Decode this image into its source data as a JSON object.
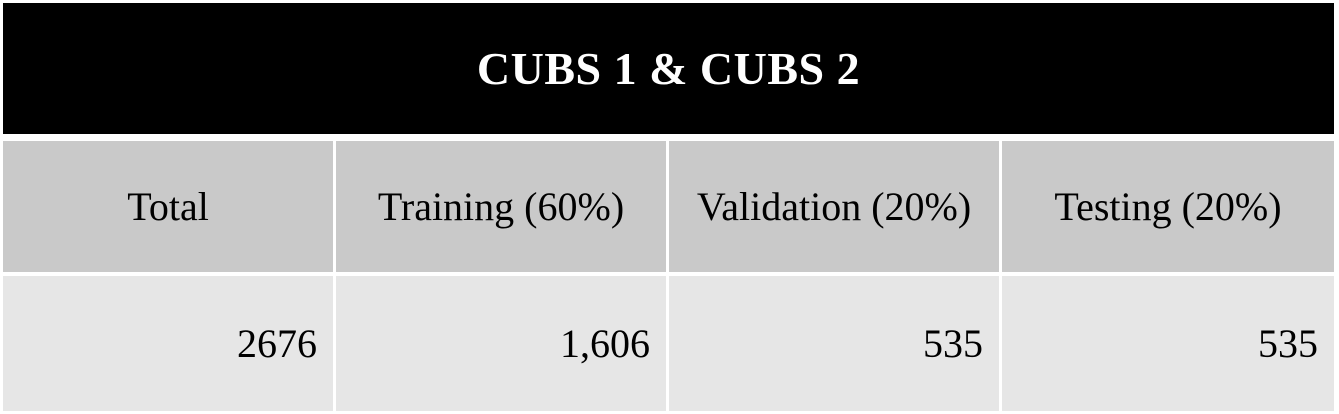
{
  "title": "CUBS 1 & CUBS 2",
  "columns": [
    "Total",
    "Training (60%)",
    "Validation (20%)",
    "Testing (20%)"
  ],
  "values": [
    "2676",
    "1,606",
    "535",
    "535"
  ],
  "colors": {
    "title_background": "#000000",
    "title_text": "#ffffff",
    "header_background": "#c9c9c9",
    "value_background": "#e6e6e6",
    "grid_lines": "#ffffff"
  }
}
